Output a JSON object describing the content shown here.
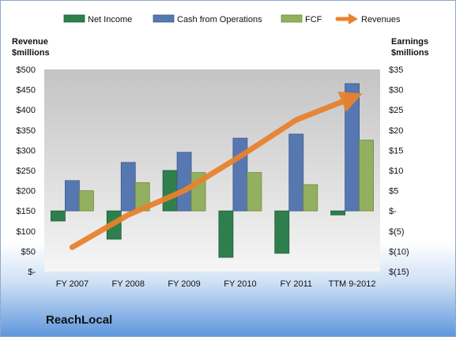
{
  "company": "ReachLocal",
  "colors": {
    "net_income": "#2f7f4e",
    "cash_ops": "#5677b0",
    "fcf": "#93b060",
    "revenues": "#e8822e"
  },
  "chart_data": {
    "type": "bar",
    "categories": [
      "FY 2007",
      "FY 2008",
      "FY 2009",
      "FY 2010",
      "FY 2011",
      "TTM 9-2012"
    ],
    "series": [
      {
        "name": "Net Income",
        "type": "bar",
        "axis": "right",
        "values": [
          -2.5,
          -7,
          10,
          -11.5,
          -10.5,
          -1
        ]
      },
      {
        "name": "Cash from Operations",
        "type": "bar",
        "axis": "right",
        "values": [
          7.5,
          12,
          14.5,
          18,
          19,
          31.5
        ]
      },
      {
        "name": "FCF",
        "type": "bar",
        "axis": "right",
        "values": [
          5,
          7,
          9.5,
          9.5,
          6.5,
          17.5
        ]
      },
      {
        "name": "Revenues",
        "type": "line",
        "axis": "left",
        "values": [
          60,
          140,
          200,
          285,
          375,
          430
        ]
      }
    ],
    "y_left": {
      "label_lines": [
        "Revenue",
        "$millions"
      ],
      "ylim": [
        0,
        500
      ],
      "ticks": [
        "$-",
        "$50",
        "$100",
        "$150",
        "$200",
        "$250",
        "$300",
        "$350",
        "$400",
        "$450",
        "$500"
      ]
    },
    "y_right": {
      "label_lines": [
        "Earnings",
        "$millions"
      ],
      "ylim": [
        -15,
        35
      ],
      "ticks": [
        "$(15)",
        "$(10)",
        "$(5)",
        "$-",
        "$5",
        "$10",
        "$15",
        "$20",
        "$25",
        "$30",
        "$35"
      ]
    },
    "legend": [
      "Net Income",
      "Cash from Operations",
      "FCF",
      "Revenues"
    ],
    "legend_position": "top",
    "grid": false
  }
}
